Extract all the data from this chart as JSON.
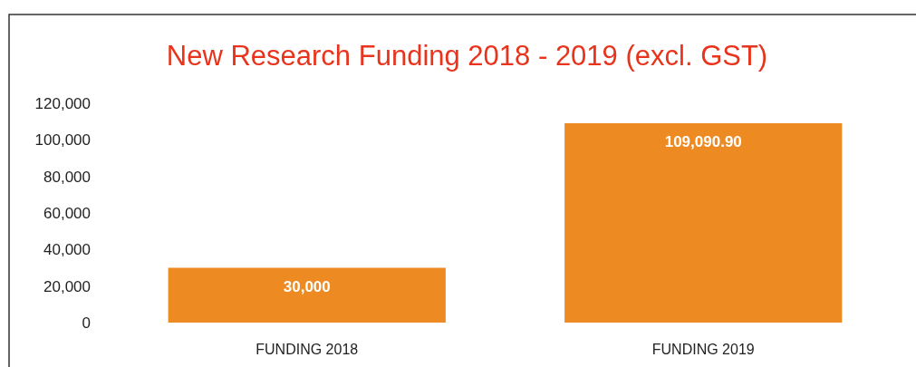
{
  "chart_data": {
    "type": "bar",
    "title": "New Research Funding 2018 - 2019 (excl. GST)",
    "categories": [
      "FUNDING 2018",
      "FUNDING 2019"
    ],
    "values": [
      30000,
      109090.9
    ],
    "value_labels": [
      "30,000",
      "109,090.90"
    ],
    "color": "#ee8a22",
    "ylim": [
      0,
      120000
    ],
    "yticks": [
      {
        "value": 0,
        "label": "0"
      },
      {
        "value": 20000,
        "label": "20,000"
      },
      {
        "value": 40000,
        "label": "40,000"
      },
      {
        "value": 60000,
        "label": "60,000"
      },
      {
        "value": 80000,
        "label": "80,000"
      },
      {
        "value": 100000,
        "label": "100,000"
      },
      {
        "value": 120000,
        "label": "120,000"
      }
    ],
    "grid": false
  }
}
